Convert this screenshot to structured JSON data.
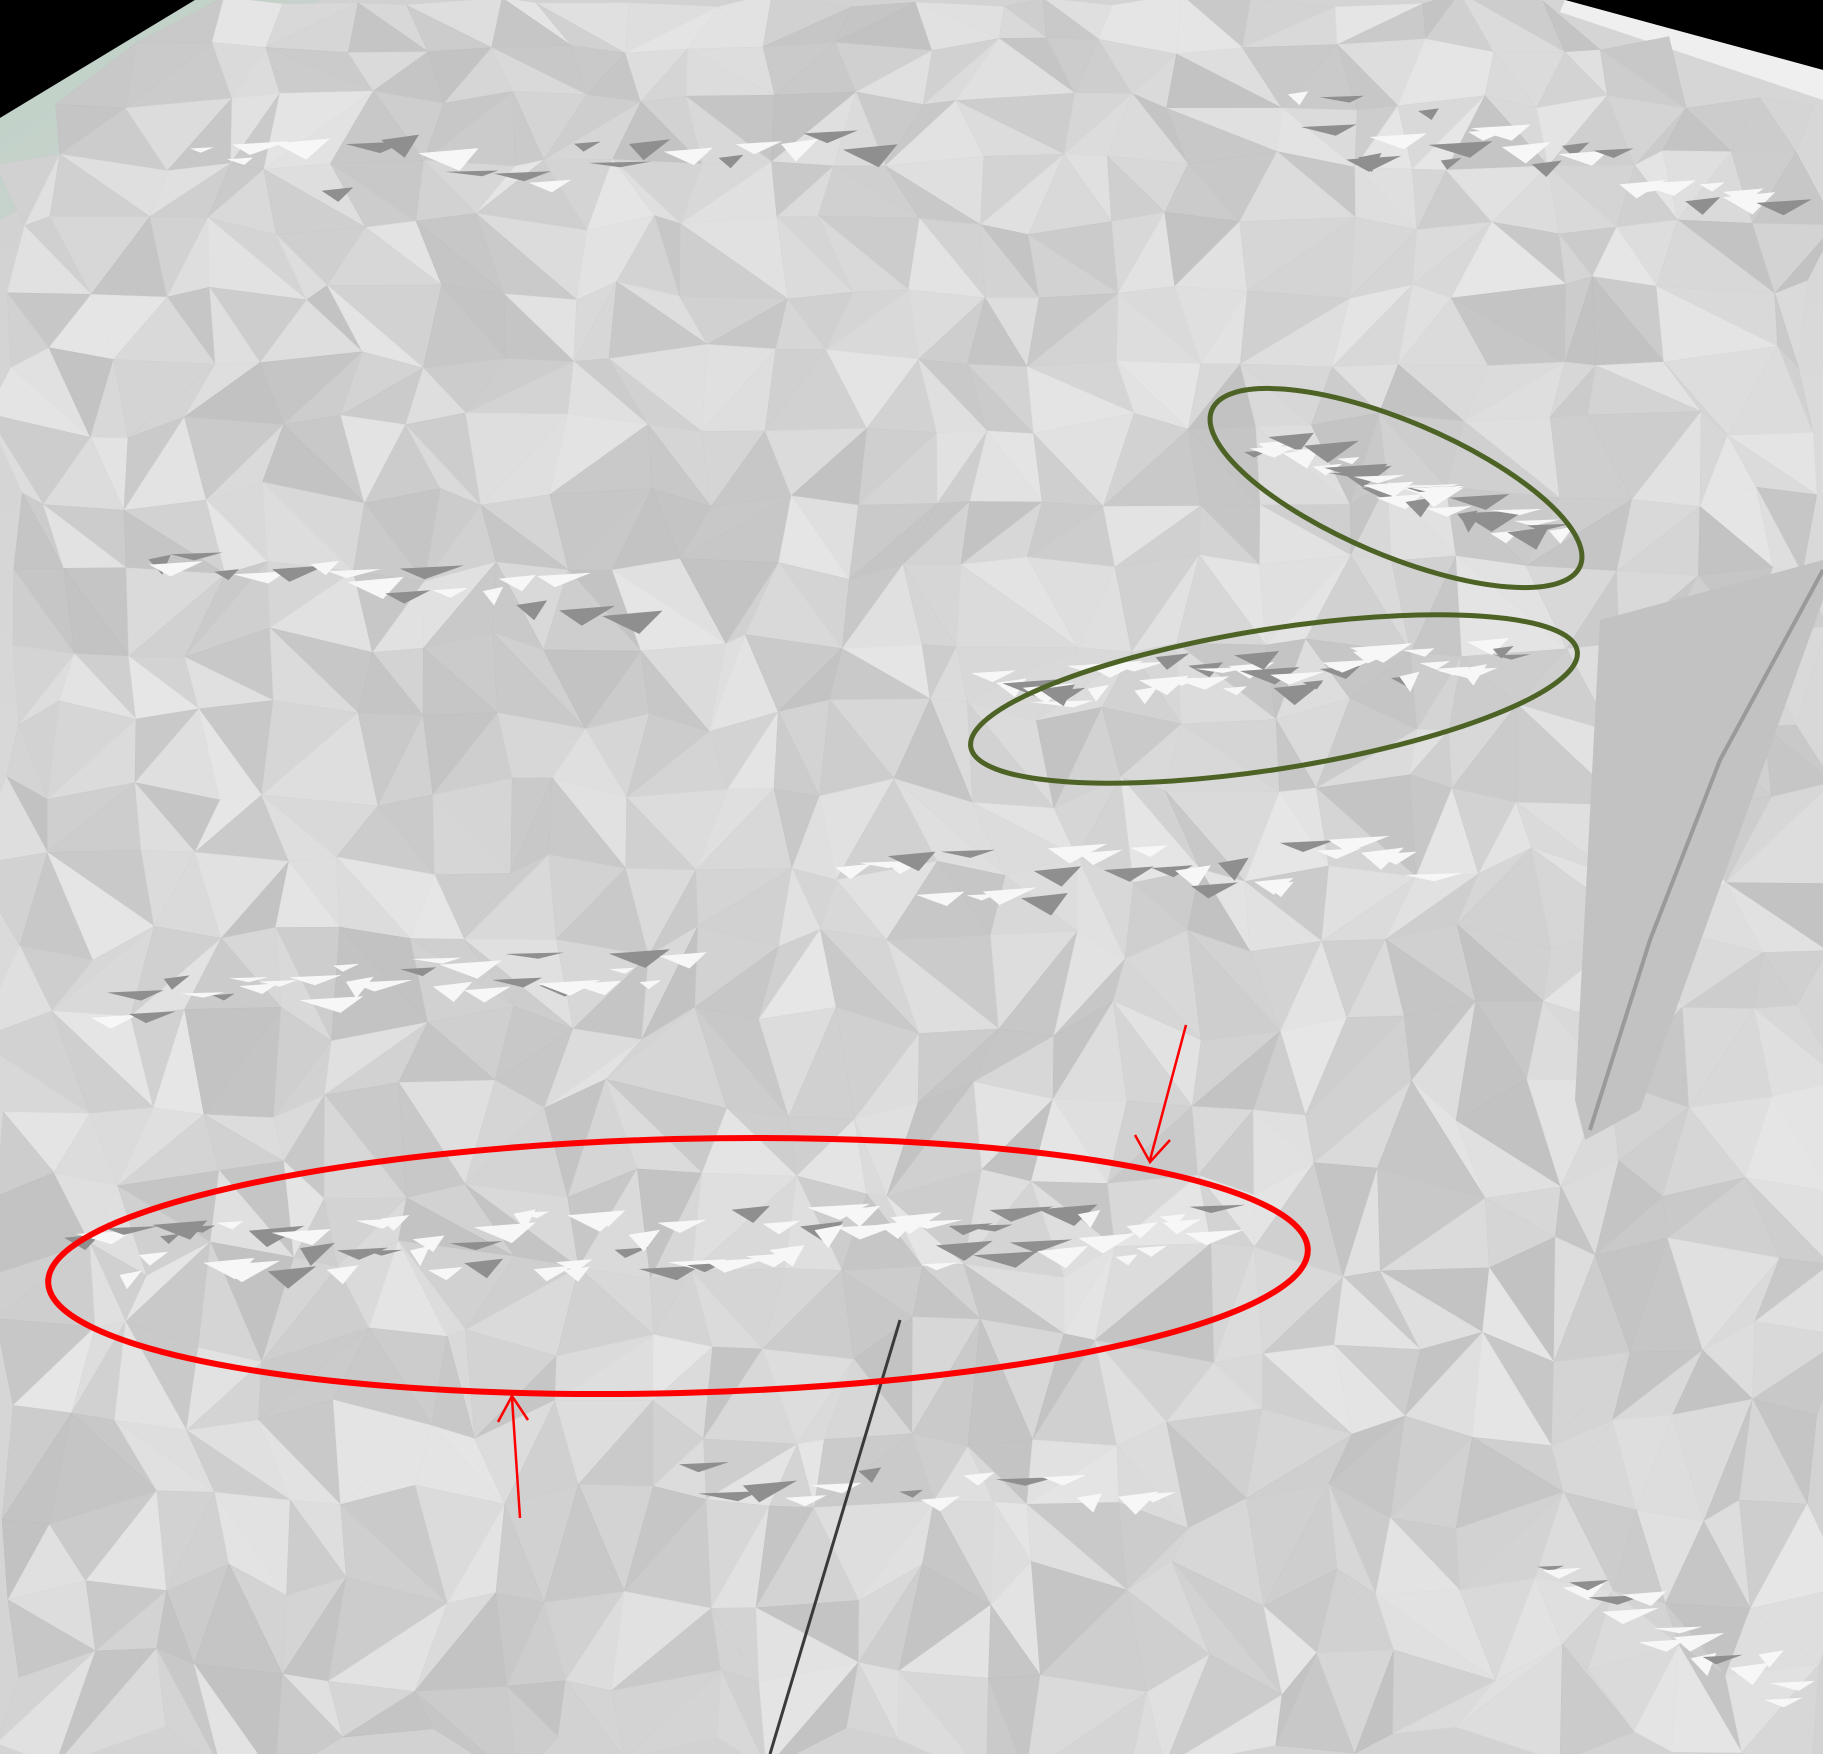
{
  "scene": {
    "background_color": "#000000",
    "surface_base_color": "#d4d4d4",
    "surface_light_color": "#f6f6f6",
    "surface_shadow_color": "#8e8e8e",
    "corner_tint_color": "#b9d2c4"
  },
  "annotations": {
    "highlight_primary": {
      "shape": "ellipse",
      "color": "#ff0000",
      "arrow_count": 2
    },
    "highlight_secondary": {
      "shape": "ellipse",
      "color": "#4d6326",
      "count": 2
    }
  }
}
